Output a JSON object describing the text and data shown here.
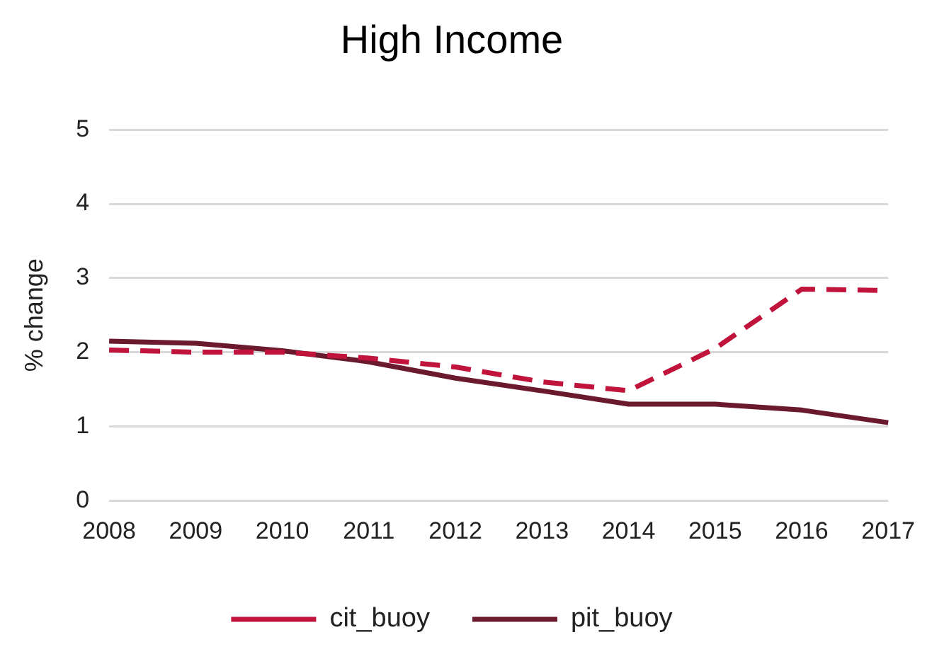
{
  "chart_data": {
    "type": "line",
    "title": "High Income",
    "ylabel": "% change",
    "categories": [
      "2008",
      "2009",
      "2010",
      "2011",
      "2012",
      "2013",
      "2014",
      "2015",
      "2016",
      "2017"
    ],
    "series": [
      {
        "name": "cit_buoy",
        "color": "#c0143c",
        "line_style": "dashed",
        "values": [
          2.03,
          2.0,
          2.0,
          1.92,
          1.8,
          1.6,
          1.48,
          2.05,
          2.85,
          2.83
        ]
      },
      {
        "name": "pit_buoy",
        "color": "#6b1a2e",
        "line_style": "solid",
        "values": [
          2.15,
          2.12,
          2.02,
          1.87,
          1.65,
          1.48,
          1.3,
          1.3,
          1.22,
          1.05
        ]
      }
    ],
    "ylim": [
      0,
      5
    ],
    "yticks": [
      0,
      1,
      2,
      3,
      4,
      5
    ],
    "grid": "y",
    "legend": "bottom",
    "marker": "none"
  }
}
